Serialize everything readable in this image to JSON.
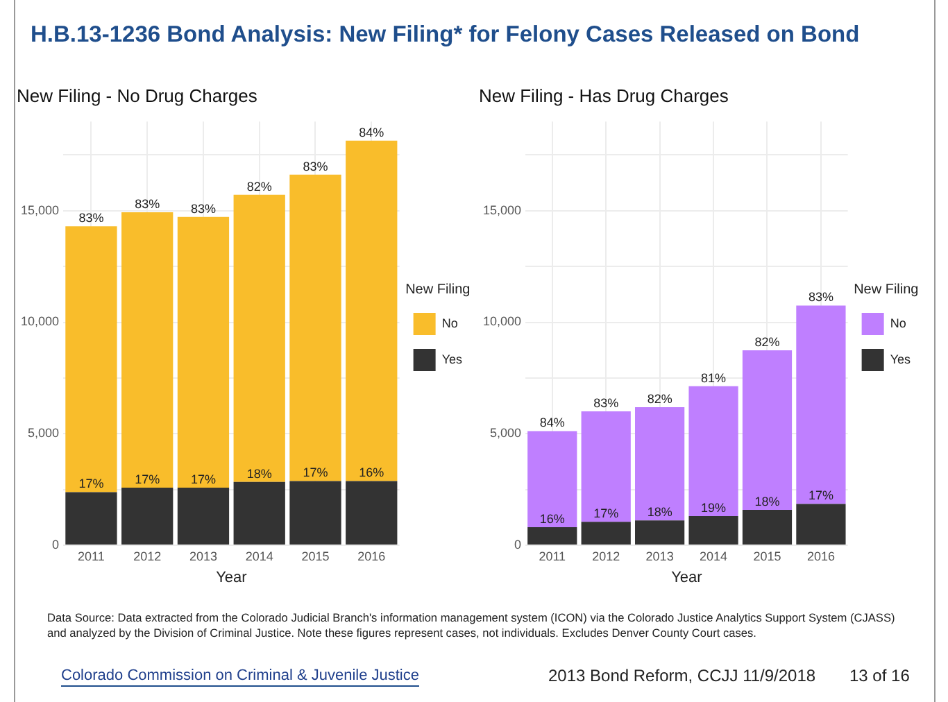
{
  "chart_data": [
    {
      "type": "other",
      "title": "H.B.13-1236 Bond Analysis: New Filing* for Felony Cases Released on Bond",
      "annotations": [
        "Data Source: Data extracted from the Colorado Judicial Branch's information management system (ICON) via the Colorado Justice Analytics Support System (CJASS) and analyzed by the Division of Criminal Justice. Note these figures represent cases, not individuals. Excludes Denver County Court cases.",
        "Colorado Commission on Criminal & Juvenile Justice",
        "2013 Bond Reform, CCJJ 11/9/2018",
        "13 of 16"
      ]
    },
    {
      "type": "bar",
      "title": "New Filing - No Drug Charges",
      "xlabel": "Year",
      "legend_title": "New Filing",
      "legend": "right",
      "grid": true,
      "stacked": true,
      "categories": [
        "2011",
        "2012",
        "2013",
        "2014",
        "2015",
        "2016"
      ],
      "series": [
        {
          "name": "Yes",
          "color": "#333333",
          "values": [
            2380,
            2580,
            2580,
            2840,
            2880,
            2880
          ]
        },
        {
          "name": "No",
          "color": "#f9bd2b",
          "values": [
            11920,
            12350,
            12140,
            12880,
            13740,
            15260
          ]
        }
      ],
      "annotations": [
        {
          "text": "17%",
          "x": "2011",
          "y": 2380
        },
        {
          "text": "17%",
          "x": "2012",
          "y": 2580
        },
        {
          "text": "17%",
          "x": "2013",
          "y": 2580
        },
        {
          "text": "18%",
          "x": "2014",
          "y": 2840
        },
        {
          "text": "17%",
          "x": "2015",
          "y": 2880
        },
        {
          "text": "16%",
          "x": "2016",
          "y": 2880
        },
        {
          "text": "83%",
          "x": "2011",
          "y": 14300
        },
        {
          "text": "83%",
          "x": "2012",
          "y": 14930
        },
        {
          "text": "83%",
          "x": "2013",
          "y": 14720
        },
        {
          "text": "82%",
          "x": "2014",
          "y": 15720
        },
        {
          "text": "83%",
          "x": "2015",
          "y": 16620
        },
        {
          "text": "84%",
          "x": "2016",
          "y": 18140
        }
      ],
      "ylim": [
        0,
        19000
      ],
      "yticks": [
        {
          "value": 0,
          "label": "0"
        },
        {
          "value": 2500,
          "label": null
        },
        {
          "value": 5000,
          "label": "5,000"
        },
        {
          "value": 7500,
          "label": null
        },
        {
          "value": 10000,
          "label": "10,000"
        },
        {
          "value": 12500,
          "label": null
        },
        {
          "value": 15000,
          "label": "15,000"
        },
        {
          "value": 17500,
          "label": null
        }
      ]
    },
    {
      "type": "bar",
      "title": "New Filing - Has Drug Charges",
      "xlabel": "Year",
      "legend_title": "New Filing",
      "legend": "right",
      "grid": true,
      "stacked": true,
      "categories": [
        "2011",
        "2012",
        "2013",
        "2014",
        "2015",
        "2016"
      ],
      "series": [
        {
          "name": "Yes",
          "color": "#333333",
          "values": [
            810,
            1050,
            1110,
            1310,
            1590,
            1850
          ]
        },
        {
          "name": "No",
          "color": "#bf7fff",
          "values": [
            4310,
            4950,
            5080,
            5820,
            7150,
            8900
          ]
        }
      ],
      "annotations": [
        {
          "text": "16%",
          "x": "2011",
          "y": 810
        },
        {
          "text": "17%",
          "x": "2012",
          "y": 1050
        },
        {
          "text": "18%",
          "x": "2013",
          "y": 1110
        },
        {
          "text": "19%",
          "x": "2014",
          "y": 1310
        },
        {
          "text": "18%",
          "x": "2015",
          "y": 1590
        },
        {
          "text": "17%",
          "x": "2016",
          "y": 1850
        },
        {
          "text": "84%",
          "x": "2011",
          "y": 5120
        },
        {
          "text": "83%",
          "x": "2012",
          "y": 6000
        },
        {
          "text": "82%",
          "x": "2013",
          "y": 6190
        },
        {
          "text": "81%",
          "x": "2014",
          "y": 7130
        },
        {
          "text": "82%",
          "x": "2015",
          "y": 8740
        },
        {
          "text": "83%",
          "x": "2016",
          "y": 10750
        }
      ],
      "ylim": [
        0,
        19000
      ],
      "yticks": [
        {
          "value": 0,
          "label": "0"
        },
        {
          "value": 2500,
          "label": null
        },
        {
          "value": 5000,
          "label": "5,000"
        },
        {
          "value": 7500,
          "label": null
        },
        {
          "value": 10000,
          "label": "10,000"
        },
        {
          "value": 12500,
          "label": null
        },
        {
          "value": 15000,
          "label": "15,000"
        },
        {
          "value": 17500,
          "label": null
        }
      ]
    }
  ]
}
